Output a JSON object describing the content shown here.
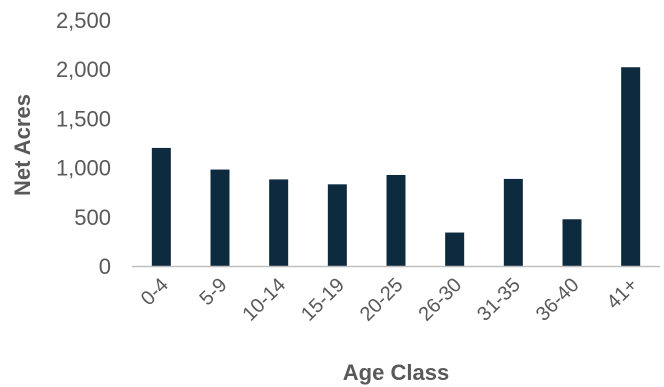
{
  "chart_data": {
    "type": "bar",
    "title": "",
    "xlabel": "Age Class",
    "ylabel": "Net Acres",
    "categories": [
      "0-4",
      "5-9",
      "10-14",
      "15-19",
      "20-25",
      "26-30",
      "31-35",
      "36-40",
      "41+"
    ],
    "values": [
      1200,
      980,
      880,
      830,
      925,
      340,
      885,
      475,
      2020
    ],
    "ylim": [
      0,
      2500
    ],
    "yticks": [
      0,
      500,
      1000,
      1500,
      2000,
      2500
    ],
    "ytick_labels": [
      "0",
      "500",
      "1,000",
      "1,500",
      "2,000",
      "2,500"
    ],
    "grid": false,
    "bar_color": "#0d2a3e",
    "axis_color": "#bfbfbf",
    "text_color": "#595959"
  }
}
